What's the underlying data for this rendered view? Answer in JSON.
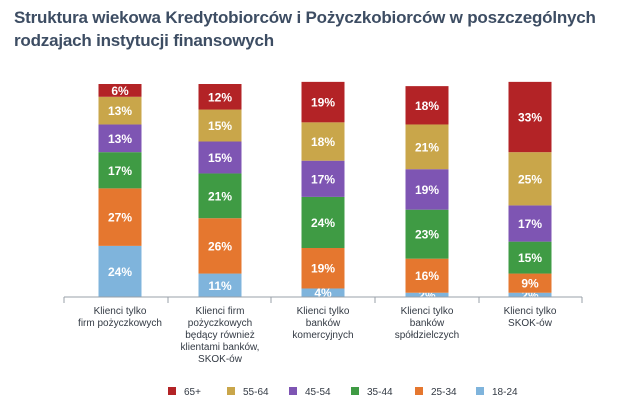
{
  "chart_data": {
    "type": "bar",
    "stacked": true,
    "title": "Struktura wiekowa Kredytobiorców i Pożyczkobiorców w poszczególnych rodzajach instytucji finansowych",
    "categories": [
      [
        "Klienci tylko",
        "firm pożyczkowych"
      ],
      [
        "Klienci firm",
        "pożyczkowych",
        "będący również",
        "klientami banków,",
        "SKOK-ów"
      ],
      [
        "Klienci tylko",
        "banków",
        "komercyjnych"
      ],
      [
        "Klienci tylko",
        "banków",
        "spółdzielczych"
      ],
      [
        "Klienci tylko",
        "SKOK-ów"
      ]
    ],
    "series": [
      {
        "name": "18-24",
        "color": "#7fb4dc",
        "values": [
          24,
          11,
          4,
          2,
          2
        ],
        "labels": [
          "24%",
          "11%",
          "4%",
          "2%",
          "2%"
        ]
      },
      {
        "name": "25-34",
        "color": "#e5772f",
        "values": [
          27,
          26,
          19,
          16,
          9
        ],
        "labels": [
          "27%",
          "26%",
          "19%",
          "16%",
          "9%"
        ]
      },
      {
        "name": "35-44",
        "color": "#3f9b44",
        "values": [
          17,
          21,
          24,
          23,
          15
        ],
        "labels": [
          "17%",
          "21%",
          "24%",
          "23%",
          "15%"
        ]
      },
      {
        "name": "45-54",
        "color": "#7e55b3",
        "values": [
          13,
          15,
          17,
          19,
          17
        ],
        "labels": [
          "13%",
          "15%",
          "17%",
          "19%",
          "17%"
        ]
      },
      {
        "name": "55-64",
        "color": "#c9a64a",
        "values": [
          13,
          15,
          18,
          21,
          25
        ],
        "labels": [
          "13%",
          "15%",
          "18%",
          "21%",
          "25%"
        ]
      },
      {
        "name": "65+",
        "color": "#b32326",
        "values": [
          6,
          12,
          19,
          18,
          33
        ],
        "labels": [
          "6%",
          "12%",
          "19%",
          "18%",
          "33%"
        ]
      }
    ],
    "legend_order": [
      "65+",
      "55-64",
      "45-54",
      "35-44",
      "25-34",
      "18-24"
    ],
    "legend_position": "bottom",
    "ylim": [
      0,
      100
    ],
    "grid": false
  }
}
